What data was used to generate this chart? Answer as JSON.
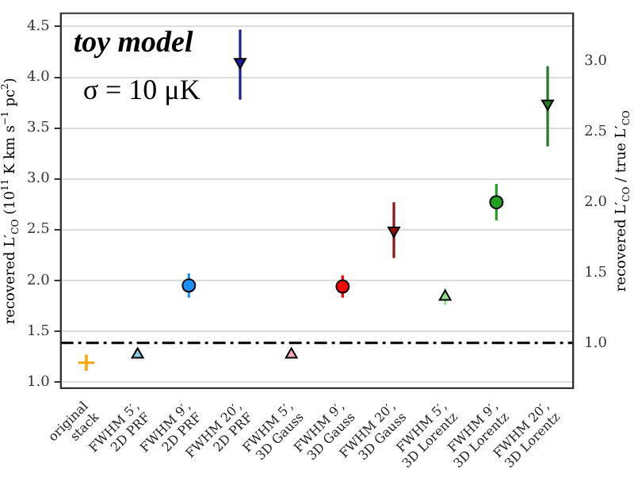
{
  "chart_data": {
    "type": "scatter",
    "title": "toy model",
    "subtitle": "σ = 10 μK",
    "ylabel": "recovered L′$_{CO}$ (10$^{11}$ K km s$^{−1}$ pc$^{2}$)",
    "y2label": "recovered L′$_{CO}$ / true L′$_{CO}$",
    "categories": [
      "original\nstack",
      "FWHM 5′,\n2D PRF",
      "FWHM 9′,\n2D PRF",
      "FWHM 20′,\n2D PRF",
      "FWHM 5′,\n3D Gauss",
      "FWHM 9′,\n3D Gauss",
      "FWHM 20′,\n3D Gauss",
      "FWHM 5′,\n3D Lorentz",
      "FWHM 9′,\n3D Lorentz",
      "FWHM 20′,\n3D Lorentz"
    ],
    "series": [
      {
        "color": "#ffa500",
        "marker": "cross",
        "x": [
          "original\nstack"
        ],
        "values": [
          1.19
        ],
        "errors": [
          0.08
        ]
      },
      {
        "color": "#87cde6",
        "marker": "triangle",
        "x": [
          "FWHM 5′,\n2D PRF"
        ],
        "values": [
          1.27
        ],
        "errors": [
          0.03
        ]
      },
      {
        "color": "#1e8fff",
        "marker": "circle",
        "x": [
          "FWHM 9′,\n2D PRF"
        ],
        "values": [
          1.95
        ],
        "errors": [
          0.12
        ]
      },
      {
        "color": "#1c1ca0",
        "marker": "triangle-down",
        "x": [
          "FWHM 20′,\n2D PRF"
        ],
        "values": [
          4.15
        ],
        "errors": [
          [
            3.78,
            4.47
          ]
        ]
      },
      {
        "color": "#f4a7b9",
        "marker": "triangle",
        "x": [
          "FWHM 5′,\n3D Gauss"
        ],
        "values": [
          1.27
        ],
        "errors": [
          0.03
        ]
      },
      {
        "color": "#ff0000",
        "marker": "circle",
        "x": [
          "FWHM 9′,\n3D Gauss"
        ],
        "values": [
          1.94
        ],
        "errors": [
          0.11
        ]
      },
      {
        "color": "#9a0f0f",
        "marker": "triangle-down",
        "x": [
          "FWHM 20′,\n3D Gauss"
        ],
        "values": [
          2.49
        ],
        "errors": [
          [
            2.22,
            2.77
          ]
        ]
      },
      {
        "color": "#8fe38f",
        "marker": "triangle",
        "x": [
          "FWHM 5′,\n3D Lorentz"
        ],
        "values": [
          1.84
        ],
        "errors": [
          0.08
        ]
      },
      {
        "color": "#22a022",
        "marker": "circle",
        "x": [
          "FWHM 9′,\n3D Lorentz"
        ],
        "values": [
          2.77
        ],
        "errors": [
          0.18
        ]
      },
      {
        "color": "#237a23",
        "marker": "triangle-down",
        "x": [
          "FWHM 20′,\n3D Lorentz"
        ],
        "values": [
          3.74
        ],
        "errors": [
          [
            3.32,
            4.11
          ]
        ]
      }
    ],
    "ylim": [
      0.94,
      4.63
    ],
    "yticks": [
      {
        "value": 1,
        "label": "1.0"
      },
      1.5,
      {
        "value": 2,
        "label": "2.0"
      },
      2.5,
      {
        "value": 3,
        "label": "3.0"
      },
      3.5,
      {
        "value": 4,
        "label": "4.0"
      },
      4.5
    ],
    "y2lim": [
      0.68,
      3.34
    ],
    "y2ticks": [
      {
        "value": 1,
        "label": "1.0"
      },
      1.5,
      {
        "value": 2,
        "label": "2.0"
      },
      2.5,
      {
        "value": 3,
        "label": "3.0"
      }
    ],
    "ref_lines": [
      {
        "axis": "y2",
        "value": 1,
        "color": "#000000",
        "line_style": "dashdot"
      }
    ],
    "grid": "y",
    "legend": false
  }
}
